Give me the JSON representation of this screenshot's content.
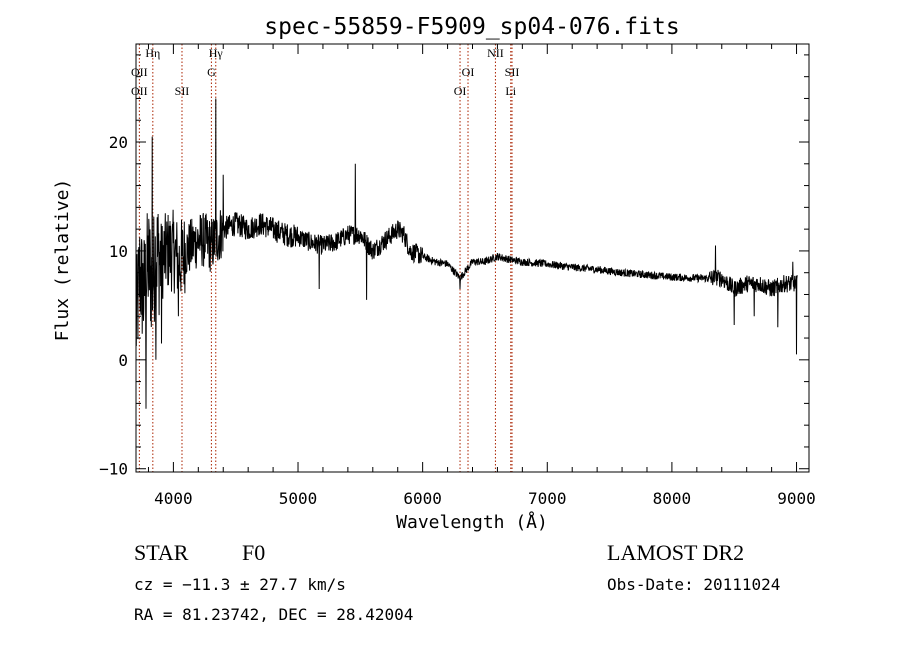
{
  "chart_data": {
    "type": "line",
    "title": "spec-55859-F5909_sp04-076.fits",
    "xlabel": "Wavelength (Å)",
    "ylabel": "Flux (relative)",
    "xlim": [
      3700,
      9100
    ],
    "ylim": [
      -10.3,
      29
    ],
    "x_ticks": [
      4000,
      5000,
      6000,
      7000,
      8000,
      9000
    ],
    "y_ticks": [
      -10,
      0,
      10,
      20
    ],
    "grid": false,
    "series_color": "#000000",
    "line_color": "#aa2200",
    "spectrum_anchors": [
      [
        3700,
        3
      ],
      [
        3730,
        8
      ],
      [
        3760,
        6
      ],
      [
        3800,
        9
      ],
      [
        3830,
        7
      ],
      [
        3860,
        10
      ],
      [
        3900,
        9
      ],
      [
        3950,
        10
      ],
      [
        4000,
        10
      ],
      [
        4050,
        9
      ],
      [
        4100,
        10
      ],
      [
        4150,
        10.5
      ],
      [
        4200,
        11
      ],
      [
        4250,
        11
      ],
      [
        4300,
        10.5
      ],
      [
        4340,
        11
      ],
      [
        4400,
        12
      ],
      [
        4500,
        12.5
      ],
      [
        4600,
        12
      ],
      [
        4700,
        12.5
      ],
      [
        4800,
        12
      ],
      [
        4900,
        11.5
      ],
      [
        5000,
        11.3
      ],
      [
        5100,
        10.8
      ],
      [
        5200,
        10.5
      ],
      [
        5300,
        10.8
      ],
      [
        5400,
        11.5
      ],
      [
        5500,
        11.5
      ],
      [
        5600,
        10
      ],
      [
        5700,
        11
      ],
      [
        5800,
        12
      ],
      [
        5850,
        11.5
      ],
      [
        5900,
        10
      ],
      [
        6000,
        9.5
      ],
      [
        6100,
        9
      ],
      [
        6200,
        8.8
      ],
      [
        6300,
        7.5
      ],
      [
        6400,
        9
      ],
      [
        6500,
        9
      ],
      [
        6600,
        9.5
      ],
      [
        6700,
        9.2
      ],
      [
        6800,
        9
      ],
      [
        7000,
        8.8
      ],
      [
        7200,
        8.5
      ],
      [
        7400,
        8.3
      ],
      [
        7600,
        8
      ],
      [
        7800,
        7.8
      ],
      [
        8000,
        7.6
      ],
      [
        8200,
        7.5
      ],
      [
        8400,
        7.5
      ],
      [
        8500,
        6.5
      ],
      [
        8600,
        7
      ],
      [
        8700,
        7
      ],
      [
        8800,
        6.5
      ],
      [
        8900,
        7
      ],
      [
        9000,
        7
      ]
    ],
    "spectrum_features": [
      {
        "x": 3780,
        "y": -4.5
      },
      {
        "x": 3830,
        "y": 20.5
      },
      {
        "x": 3860,
        "y": 0
      },
      {
        "x": 3905,
        "y": 1.5
      },
      {
        "x": 4040,
        "y": 4
      },
      {
        "x": 4340,
        "y": 24
      },
      {
        "x": 4400,
        "y": 17
      },
      {
        "x": 5170,
        "y": 6.5
      },
      {
        "x": 5460,
        "y": 18
      },
      {
        "x": 5550,
        "y": 5.5
      },
      {
        "x": 6300,
        "y": 6.5
      },
      {
        "x": 8350,
        "y": 10.5
      },
      {
        "x": 8500,
        "y": 3.2
      },
      {
        "x": 8660,
        "y": 4
      },
      {
        "x": 8850,
        "y": 3
      },
      {
        "x": 8970,
        "y": 9
      },
      {
        "x": 9000,
        "y": 0.5
      }
    ],
    "lines": [
      {
        "x": 3727,
        "labels": [
          "OII",
          "OII"
        ]
      },
      {
        "x": 3835,
        "labels": [
          "Hη"
        ]
      },
      {
        "x": 4069,
        "labels": [
          "SII"
        ]
      },
      {
        "x": 4305,
        "labels": [
          "G"
        ]
      },
      {
        "x": 4340,
        "labels": [
          "Hγ"
        ]
      },
      {
        "x": 6300,
        "labels": [
          "OI"
        ]
      },
      {
        "x": 6364,
        "labels": [
          "OI"
        ]
      },
      {
        "x": 6584,
        "labels": [
          "NII"
        ]
      },
      {
        "x": 6707,
        "labels": [
          "Li"
        ]
      },
      {
        "x": 6717,
        "labels": [
          "SII"
        ]
      }
    ]
  },
  "info": {
    "class": "STAR",
    "subclass": "F0",
    "survey": "LAMOST DR2",
    "redshift": "cz = −11.3 ± 27.7 km/s",
    "obs_date": "Obs-Date: 20111024",
    "coords": "RA =  81.23742, DEC =  28.42004"
  }
}
